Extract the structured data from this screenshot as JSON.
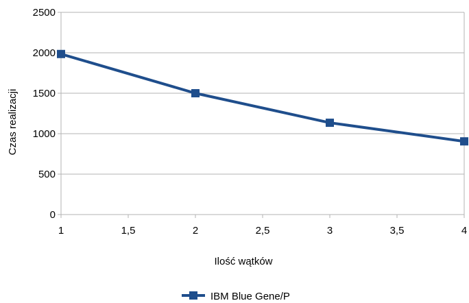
{
  "chart_data": {
    "type": "line",
    "xlabel": "Ilość wątków",
    "ylabel": "Czas realizacji",
    "xlim": [
      1,
      4
    ],
    "ylim": [
      0,
      2500
    ],
    "x_ticks": [
      "1",
      "1,5",
      "2",
      "2,5",
      "3",
      "3,5",
      "4"
    ],
    "x_tick_values": [
      1,
      1.5,
      2,
      2.5,
      3,
      3.5,
      4
    ],
    "y_ticks": [
      "0",
      "500",
      "1000",
      "1500",
      "2000",
      "2500"
    ],
    "y_tick_values": [
      0,
      500,
      1000,
      1500,
      2000,
      2500
    ],
    "grid": "horizontal",
    "legend_position": "bottom",
    "series": [
      {
        "name": "IBM Blue Gene/P",
        "color": "#1f4e8c",
        "marker": "square",
        "x": [
          1,
          2,
          3,
          4
        ],
        "values": [
          1985,
          1500,
          1135,
          905
        ]
      }
    ]
  }
}
